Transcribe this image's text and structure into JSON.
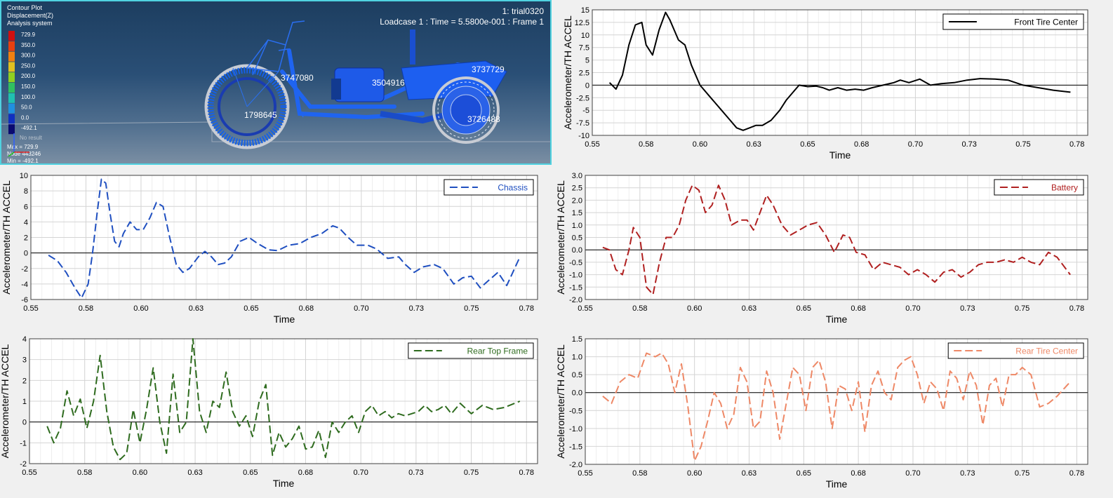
{
  "viewport": {
    "legend_lines": [
      "Contour Plot",
      "Displacement(Z)",
      "Analysis system"
    ],
    "scale_values": [
      "729.9",
      "350.0",
      "300.0",
      "250.0",
      "200.0",
      "150.0",
      "100.0",
      "50.0",
      "0.0",
      "-492.1"
    ],
    "scale_colors": [
      "#d01010",
      "#e84010",
      "#f08010",
      "#e0c020",
      "#90d020",
      "#30c060",
      "#20c0b0",
      "#2090e0",
      "#1030c0",
      "#0a0a70"
    ],
    "no_result": "No result",
    "max_text": "Max = 729.9",
    "node_text": "Node 443246",
    "min_text": "Min = -492.1",
    "title_right": "1: trial0320",
    "loadcase_text": "Loadcase 1 : Time = 5.5800e-001 : Frame 1",
    "node_labels": [
      "3747080",
      "3504916",
      "3737729",
      "1798645",
      "3726488"
    ]
  },
  "chart_data": [
    {
      "type": "line",
      "name": "Front Tire Center",
      "color": "#000000",
      "dash": "solid",
      "xlabel": "Time",
      "ylabel": "Accelerometer/TH ACCEL",
      "xlim": [
        0.55,
        0.78
      ],
      "ylim": [
        -10,
        15
      ],
      "xticks": [
        0.55,
        0.575,
        0.6,
        0.625,
        0.65,
        0.675,
        0.7,
        0.725,
        0.75,
        0.775
      ],
      "xtick_labels": [
        "0.55",
        "0.58",
        "0.60",
        "0.63",
        "0.65",
        "0.68",
        "0.70",
        "0.73",
        "0.75",
        "0.78"
      ],
      "yticks": [
        -10,
        -7.5,
        -5,
        -2.5,
        0,
        2.5,
        5,
        7.5,
        10,
        12.5,
        15
      ],
      "ytick_labels": [
        "-10",
        "-7.5",
        "-5",
        "-2.5",
        "0",
        "2.5",
        "5",
        "7.5",
        "10",
        "12.5",
        "15"
      ],
      "grid": true,
      "legend_position": "top-right",
      "x": [
        0.558,
        0.561,
        0.564,
        0.567,
        0.57,
        0.573,
        0.575,
        0.578,
        0.581,
        0.584,
        0.586,
        0.59,
        0.593,
        0.596,
        0.6,
        0.605,
        0.61,
        0.614,
        0.617,
        0.62,
        0.623,
        0.626,
        0.629,
        0.633,
        0.637,
        0.64,
        0.643,
        0.646,
        0.65,
        0.654,
        0.657,
        0.66,
        0.664,
        0.668,
        0.672,
        0.676,
        0.68,
        0.685,
        0.69,
        0.693,
        0.697,
        0.702,
        0.707,
        0.712,
        0.718,
        0.724,
        0.73,
        0.737,
        0.743,
        0.75,
        0.757,
        0.764,
        0.772
      ],
      "values": [
        0.5,
        -0.8,
        2,
        8,
        12,
        12.5,
        8,
        6,
        11,
        14.5,
        13,
        9,
        8,
        4,
        0,
        -2.5,
        -5,
        -7,
        -8.5,
        -9,
        -8.5,
        -8,
        -8,
        -7,
        -5,
        -3,
        -1.5,
        0,
        -0.3,
        -0.2,
        -0.5,
        -1,
        -0.5,
        -1,
        -0.8,
        -1,
        -0.5,
        0,
        0.5,
        1,
        0.5,
        1.2,
        0,
        0.3,
        0.5,
        1,
        1.3,
        1.2,
        1,
        0,
        -0.5,
        -1,
        -1.4
      ]
    },
    {
      "type": "line",
      "name": "Chassis",
      "color": "#1f4fc0",
      "dash": "long",
      "xlabel": "Time",
      "ylabel": "Accelerometer/TH ACCEL",
      "xlim": [
        0.55,
        0.78
      ],
      "ylim": [
        -6,
        10
      ],
      "xticks": [
        0.55,
        0.575,
        0.6,
        0.625,
        0.65,
        0.675,
        0.7,
        0.725,
        0.75,
        0.775
      ],
      "xtick_labels": [
        "0.55",
        "0.58",
        "0.60",
        "0.63",
        "0.65",
        "0.68",
        "0.70",
        "0.73",
        "0.75",
        "0.78"
      ],
      "yticks": [
        -6,
        -4,
        -2,
        0,
        2,
        4,
        6,
        8,
        10
      ],
      "ytick_labels": [
        "-6",
        "-4",
        "-2",
        "0",
        "2",
        "4",
        "6",
        "8",
        "10"
      ],
      "grid": true,
      "legend_position": "top-right",
      "x": [
        0.558,
        0.562,
        0.566,
        0.57,
        0.573,
        0.576,
        0.578,
        0.58,
        0.582,
        0.584,
        0.586,
        0.588,
        0.59,
        0.592,
        0.595,
        0.598,
        0.601,
        0.604,
        0.607,
        0.61,
        0.613,
        0.616,
        0.619,
        0.622,
        0.626,
        0.629,
        0.632,
        0.635,
        0.638,
        0.641,
        0.645,
        0.649,
        0.653,
        0.658,
        0.662,
        0.667,
        0.672,
        0.677,
        0.682,
        0.687,
        0.69,
        0.694,
        0.698,
        0.703,
        0.707,
        0.712,
        0.717,
        0.72,
        0.724,
        0.728,
        0.733,
        0.737,
        0.742,
        0.746,
        0.75,
        0.754,
        0.758,
        0.762,
        0.766,
        0.772
      ],
      "values": [
        -0.3,
        -1,
        -2.5,
        -4.5,
        -5.8,
        -4,
        0,
        5,
        9.5,
        9,
        5,
        1.5,
        0.8,
        2.5,
        4,
        3,
        3,
        4.5,
        6.5,
        6,
        2,
        -1.5,
        -2.5,
        -2,
        -0.5,
        0.2,
        -0.5,
        -1.5,
        -1.3,
        -0.5,
        1.5,
        2,
        1.2,
        0.4,
        0.3,
        1,
        1.2,
        2,
        2.5,
        3.5,
        3.2,
        2,
        1,
        1,
        0.5,
        -0.7,
        -0.5,
        -1.5,
        -2.5,
        -1.8,
        -1.5,
        -2,
        -4,
        -3.2,
        -3,
        -4.5,
        -3.5,
        -2.5,
        -4.2,
        -0.5
      ]
    },
    {
      "type": "line",
      "name": "Battery",
      "color": "#b02020",
      "dash": "long",
      "xlabel": "Time",
      "ylabel": "Accelerometer/TH ACCEL",
      "xlim": [
        0.55,
        0.78
      ],
      "ylim": [
        -2,
        3
      ],
      "xticks": [
        0.55,
        0.575,
        0.6,
        0.625,
        0.65,
        0.675,
        0.7,
        0.725,
        0.75,
        0.775
      ],
      "xtick_labels": [
        "0.55",
        "0.58",
        "0.60",
        "0.63",
        "0.65",
        "0.68",
        "0.70",
        "0.73",
        "0.75",
        "0.78"
      ],
      "yticks": [
        -2,
        -1.5,
        -1,
        -0.5,
        0,
        0.5,
        1,
        1.5,
        2,
        2.5,
        3
      ],
      "ytick_labels": [
        "-2.0",
        "-1.5",
        "-1.0",
        "-0.5",
        "0.0",
        "0.5",
        "1.0",
        "1.5",
        "2.0",
        "2.5",
        "3.0"
      ],
      "grid": true,
      "legend_position": "top-right",
      "x": [
        0.558,
        0.561,
        0.564,
        0.567,
        0.57,
        0.572,
        0.575,
        0.578,
        0.581,
        0.584,
        0.587,
        0.59,
        0.593,
        0.596,
        0.599,
        0.602,
        0.605,
        0.608,
        0.611,
        0.614,
        0.617,
        0.621,
        0.624,
        0.627,
        0.63,
        0.633,
        0.636,
        0.64,
        0.644,
        0.648,
        0.652,
        0.656,
        0.66,
        0.664,
        0.668,
        0.671,
        0.674,
        0.678,
        0.682,
        0.686,
        0.69,
        0.694,
        0.698,
        0.702,
        0.706,
        0.71,
        0.714,
        0.718,
        0.722,
        0.726,
        0.73,
        0.734,
        0.738,
        0.742,
        0.746,
        0.75,
        0.754,
        0.758,
        0.762,
        0.766,
        0.772
      ],
      "values": [
        0.1,
        0,
        -0.8,
        -1,
        0,
        0.9,
        0.5,
        -1.5,
        -1.8,
        -0.5,
        0.5,
        0.5,
        1,
        2,
        2.6,
        2.4,
        1.5,
        1.8,
        2.6,
        2,
        1,
        1.2,
        1.2,
        0.8,
        1.5,
        2.2,
        1.8,
        1,
        0.6,
        0.8,
        1,
        1.1,
        0.6,
        -0.1,
        0.6,
        0.5,
        -0.1,
        -0.2,
        -0.8,
        -0.5,
        -0.6,
        -0.7,
        -1,
        -0.8,
        -1,
        -1.3,
        -0.9,
        -0.8,
        -1.1,
        -0.9,
        -0.6,
        -0.5,
        -0.5,
        -0.4,
        -0.5,
        -0.3,
        -0.5,
        -0.6,
        -0.1,
        -0.3,
        -1
      ]
    },
    {
      "type": "line",
      "name": "Rear Top Frame",
      "color": "#2e6b1e",
      "dash": "long",
      "xlabel": "Time",
      "ylabel": "Accelerometer/TH ACCEL",
      "xlim": [
        0.55,
        0.78
      ],
      "ylim": [
        -2,
        4
      ],
      "xticks": [
        0.55,
        0.575,
        0.6,
        0.625,
        0.65,
        0.675,
        0.7,
        0.725,
        0.75,
        0.775
      ],
      "xtick_labels": [
        "0.55",
        "0.58",
        "0.60",
        "0.63",
        "0.65",
        "0.68",
        "0.70",
        "0.73",
        "0.75",
        "0.78"
      ],
      "yticks": [
        -2,
        -1,
        0,
        1,
        2,
        3,
        4
      ],
      "ytick_labels": [
        "-2",
        "-1",
        "0",
        "1",
        "2",
        "3",
        "4"
      ],
      "grid": true,
      "legend_position": "top-right",
      "x": [
        0.558,
        0.561,
        0.564,
        0.567,
        0.57,
        0.573,
        0.576,
        0.579,
        0.582,
        0.585,
        0.588,
        0.591,
        0.594,
        0.597,
        0.6,
        0.603,
        0.606,
        0.609,
        0.612,
        0.615,
        0.618,
        0.621,
        0.624,
        0.627,
        0.63,
        0.633,
        0.636,
        0.639,
        0.642,
        0.645,
        0.648,
        0.651,
        0.654,
        0.657,
        0.66,
        0.663,
        0.666,
        0.669,
        0.672,
        0.675,
        0.678,
        0.681,
        0.684,
        0.687,
        0.69,
        0.693,
        0.696,
        0.699,
        0.702,
        0.705,
        0.708,
        0.711,
        0.714,
        0.717,
        0.72,
        0.723,
        0.726,
        0.729,
        0.732,
        0.735,
        0.738,
        0.741,
        0.745,
        0.75,
        0.755,
        0.76,
        0.765,
        0.772
      ],
      "values": [
        -0.2,
        -1,
        -0.3,
        1.5,
        0.3,
        1.1,
        -0.3,
        1,
        3.2,
        0.5,
        -1.2,
        -1.8,
        -1.5,
        0.6,
        -1,
        0.6,
        2.6,
        0,
        -1.5,
        2.3,
        -0.5,
        0,
        4,
        0.5,
        -0.5,
        1,
        0.7,
        2.4,
        0.5,
        -0.2,
        0.3,
        -0.7,
        1,
        1.8,
        -1.6,
        -0.5,
        -1.2,
        -0.8,
        -0.2,
        -1.3,
        -1.2,
        -0.4,
        -1.7,
        0,
        -0.5,
        0,
        0.3,
        -0.5,
        0.5,
        0.8,
        0.3,
        0.5,
        0.2,
        0.4,
        0.3,
        0.4,
        0.5,
        0.8,
        0.5,
        0.6,
        0.8,
        0.4,
        0.9,
        0.4,
        0.8,
        0.6,
        0.7,
        1
      ]
    },
    {
      "type": "line",
      "name": "Rear Tire Center",
      "color": "#ee8866",
      "dash": "long",
      "xlabel": "Time",
      "ylabel": "Accelerometer/TH ACCEL",
      "xlim": [
        0.55,
        0.78
      ],
      "ylim": [
        -2,
        1.5
      ],
      "xticks": [
        0.55,
        0.575,
        0.6,
        0.625,
        0.65,
        0.675,
        0.7,
        0.725,
        0.75,
        0.775
      ],
      "xtick_labels": [
        "0.55",
        "0.58",
        "0.60",
        "0.63",
        "0.65",
        "0.68",
        "0.70",
        "0.73",
        "0.75",
        "0.78"
      ],
      "yticks": [
        -2,
        -1.5,
        -1,
        -0.5,
        0,
        0.5,
        1,
        1.5
      ],
      "ytick_labels": [
        "-2.0",
        "-1.5",
        "-1.0",
        "-0.5",
        "0.0",
        "0.5",
        "1.0",
        "1.5"
      ],
      "grid": true,
      "legend_position": "top-right",
      "x": [
        0.558,
        0.562,
        0.566,
        0.57,
        0.574,
        0.578,
        0.582,
        0.585,
        0.588,
        0.591,
        0.594,
        0.597,
        0.6,
        0.603,
        0.606,
        0.609,
        0.612,
        0.615,
        0.618,
        0.621,
        0.624,
        0.627,
        0.63,
        0.633,
        0.636,
        0.639,
        0.642,
        0.645,
        0.648,
        0.651,
        0.654,
        0.657,
        0.66,
        0.663,
        0.666,
        0.669,
        0.672,
        0.675,
        0.678,
        0.681,
        0.684,
        0.687,
        0.69,
        0.693,
        0.696,
        0.699,
        0.702,
        0.705,
        0.708,
        0.711,
        0.714,
        0.717,
        0.72,
        0.723,
        0.726,
        0.729,
        0.732,
        0.735,
        0.738,
        0.741,
        0.744,
        0.747,
        0.75,
        0.754,
        0.758,
        0.762,
        0.766,
        0.772
      ],
      "values": [
        -0.1,
        -0.3,
        0.3,
        0.5,
        0.4,
        1.1,
        1,
        1.1,
        0.8,
        0,
        0.8,
        -0.4,
        -1.9,
        -1.5,
        -0.8,
        0,
        -0.3,
        -1,
        -0.6,
        0.7,
        0.3,
        -1,
        -0.8,
        0.6,
        0,
        -1.3,
        -0.3,
        0.7,
        0.5,
        -0.5,
        0.7,
        0.9,
        0.3,
        -1,
        0.2,
        0.1,
        -0.5,
        0.3,
        -1.1,
        0.2,
        0.6,
        0,
        -0.2,
        0.7,
        0.9,
        1,
        0.5,
        -0.3,
        0.3,
        0.1,
        -0.5,
        0.6,
        0.4,
        -0.2,
        0.6,
        0.2,
        -0.9,
        0.2,
        0.4,
        -0.4,
        0.5,
        0.5,
        0.7,
        0.5,
        -0.4,
        -0.3,
        -0.1,
        0.3
      ]
    }
  ]
}
